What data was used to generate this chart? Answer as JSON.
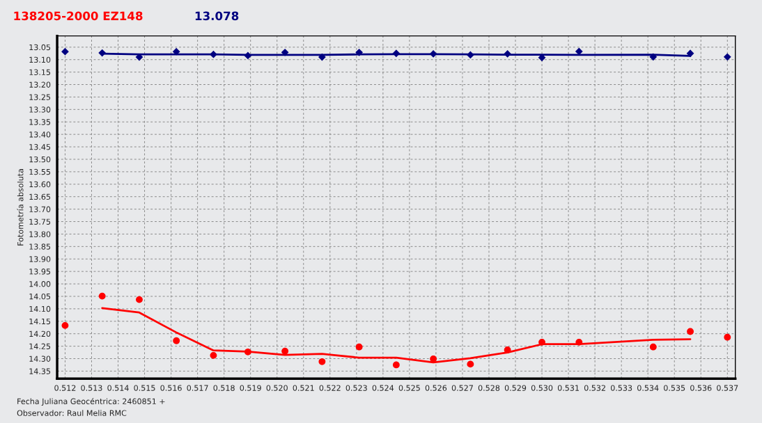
{
  "chart_data": {
    "type": "scatter",
    "title": "138205-2000 EZ148",
    "subtitle": "13.078",
    "ylabel": "Fotometría absoluta",
    "annotations": [
      "Fecha Juliana Geocéntrica: 2460851 +",
      "Observador: Raul Melia RMC"
    ],
    "x": [
      0.512,
      0.5134,
      0.5148,
      0.5162,
      0.5176,
      0.5189,
      0.5203,
      0.5217,
      0.5231,
      0.5245,
      0.5259,
      0.5273,
      0.5287,
      0.53,
      0.5314,
      0.5342,
      0.5356,
      0.537
    ],
    "series": [
      {
        "color": "#000080",
        "marker": "diamond",
        "values": [
          13.068,
          13.073,
          13.09,
          13.068,
          13.079,
          13.084,
          13.071,
          13.09,
          13.071,
          13.075,
          13.077,
          13.081,
          13.077,
          13.092,
          13.067,
          13.089,
          13.075,
          13.089
        ]
      },
      {
        "type": "line",
        "color": "#000080",
        "marker": "none",
        "x": [
          0.5134,
          0.5148,
          0.5162,
          0.5176,
          0.5189,
          0.5203,
          0.5217,
          0.5231,
          0.5245,
          0.5259,
          0.5273,
          0.5287,
          0.53,
          0.5314,
          0.5342,
          0.5356
        ],
        "values": [
          13.076,
          13.079,
          13.079,
          13.079,
          13.081,
          13.081,
          13.081,
          13.079,
          13.078,
          13.078,
          13.079,
          13.08,
          13.08,
          13.081,
          13.08,
          13.085
        ]
      },
      {
        "color": "#ff0000",
        "marker": "circle",
        "values": [
          14.167,
          14.049,
          14.063,
          14.228,
          14.287,
          14.273,
          14.27,
          14.312,
          14.253,
          14.325,
          14.301,
          14.322,
          14.265,
          14.234,
          14.234,
          14.253,
          14.191,
          14.214
        ]
      },
      {
        "type": "line",
        "color": "#ff0000",
        "marker": "none",
        "x": [
          0.5134,
          0.5148,
          0.5162,
          0.5176,
          0.5189,
          0.5203,
          0.5217,
          0.5231,
          0.5245,
          0.5259,
          0.5273,
          0.5287,
          0.53,
          0.5314,
          0.5342,
          0.5356
        ],
        "values": [
          14.097,
          14.115,
          14.195,
          14.267,
          14.272,
          14.285,
          14.281,
          14.296,
          14.296,
          14.315,
          14.298,
          14.275,
          14.242,
          14.242,
          14.224,
          14.222
        ]
      }
    ],
    "xlim": [
      0.5117,
      0.5373
    ],
    "xticks": [
      0.512,
      0.513,
      0.514,
      0.515,
      0.516,
      0.517,
      0.518,
      0.519,
      {
        "value": 0.52,
        "label": "0.520"
      },
      0.521,
      0.522,
      0.523,
      0.524,
      0.525,
      0.526,
      0.527,
      0.528,
      0.529,
      {
        "value": 0.53,
        "label": "0.530"
      },
      0.531,
      0.532,
      0.533,
      0.534,
      0.535,
      0.536,
      0.537
    ],
    "ylim": [
      14.38,
      13.005
    ],
    "yticks": [
      13.05,
      {
        "value": 13.1,
        "label": "13.10"
      },
      13.15,
      {
        "value": 13.2,
        "label": "13.20"
      },
      13.25,
      {
        "value": 13.3,
        "label": "13.30"
      },
      13.35,
      {
        "value": 13.4,
        "label": "13.40"
      },
      13.45,
      {
        "value": 13.5,
        "label": "13.50"
      },
      13.55,
      {
        "value": 13.6,
        "label": "13.60"
      },
      13.65,
      {
        "value": 13.7,
        "label": "13.70"
      },
      13.75,
      {
        "value": 13.8,
        "label": "13.80"
      },
      13.85,
      {
        "value": 13.9,
        "label": "13.90"
      },
      13.95,
      {
        "value": 14.0,
        "label": "14.00"
      },
      14.05,
      {
        "value": 14.1,
        "label": "14.10"
      },
      14.15,
      {
        "value": 14.2,
        "label": "14.20"
      },
      14.25,
      {
        "value": 14.3,
        "label": "14.30"
      },
      14.35
    ],
    "grid": true,
    "legend": false
  }
}
